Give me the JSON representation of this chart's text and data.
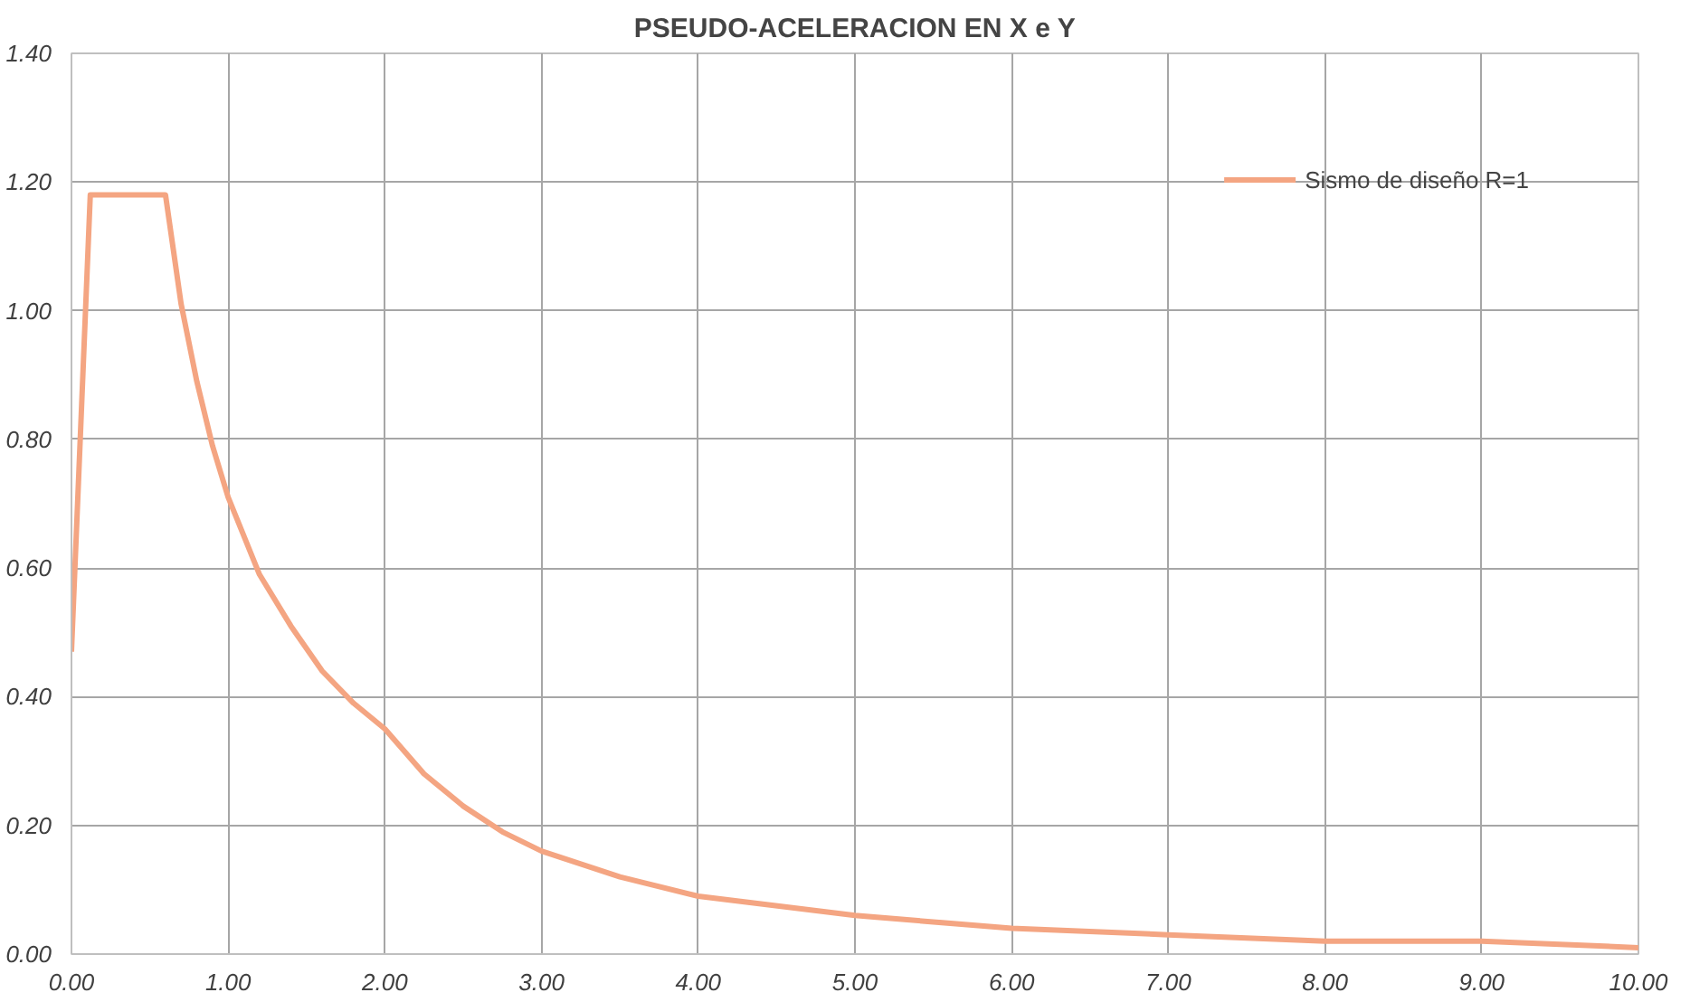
{
  "chart_data": {
    "type": "line",
    "title": "PSEUDO-ACELERACION EN X e Y",
    "x": [
      0,
      0.12,
      0.6,
      0.7,
      0.8,
      0.9,
      1.0,
      1.2,
      1.4,
      1.6,
      1.8,
      2.0,
      2.25,
      2.5,
      2.75,
      3.0,
      3.5,
      4.0,
      5.0,
      6.0,
      7.0,
      8.0,
      9.0,
      10.0
    ],
    "series": [
      {
        "name": "Sismo de diseño R=1",
        "color": "#f4a582",
        "values": [
          0.47,
          1.18,
          1.18,
          1.01,
          0.89,
          0.79,
          0.71,
          0.59,
          0.51,
          0.44,
          0.39,
          0.35,
          0.28,
          0.23,
          0.19,
          0.16,
          0.12,
          0.09,
          0.06,
          0.04,
          0.03,
          0.02,
          0.02,
          0.01
        ]
      }
    ],
    "xlim": [
      0,
      10
    ],
    "ylim": [
      0,
      1.4
    ],
    "xticks": [
      {
        "value": 0,
        "label": "0.00"
      },
      {
        "value": 1,
        "label": "1.00"
      },
      {
        "value": 2,
        "label": "2.00"
      },
      {
        "value": 3,
        "label": "3.00"
      },
      {
        "value": 4,
        "label": "4.00"
      },
      {
        "value": 5,
        "label": "5.00"
      },
      {
        "value": 6,
        "label": "6.00"
      },
      {
        "value": 7,
        "label": "7.00"
      },
      {
        "value": 8,
        "label": "8.00"
      },
      {
        "value": 9,
        "label": "9.00"
      },
      {
        "value": 10,
        "label": "10.00"
      }
    ],
    "yticks": [
      {
        "value": 0,
        "label": "0.00"
      },
      {
        "value": 0.2,
        "label": "0.20"
      },
      {
        "value": 0.4,
        "label": "0.40"
      },
      {
        "value": 0.6,
        "label": "0.60"
      },
      {
        "value": 0.8,
        "label": "0.80"
      },
      {
        "value": 1.0,
        "label": "1.00"
      },
      {
        "value": 1.2,
        "label": "1.20"
      },
      {
        "value": 1.4,
        "label": "1.40"
      }
    ],
    "grid": true,
    "legend": "top right",
    "marker": "none",
    "line_style": "solid"
  }
}
